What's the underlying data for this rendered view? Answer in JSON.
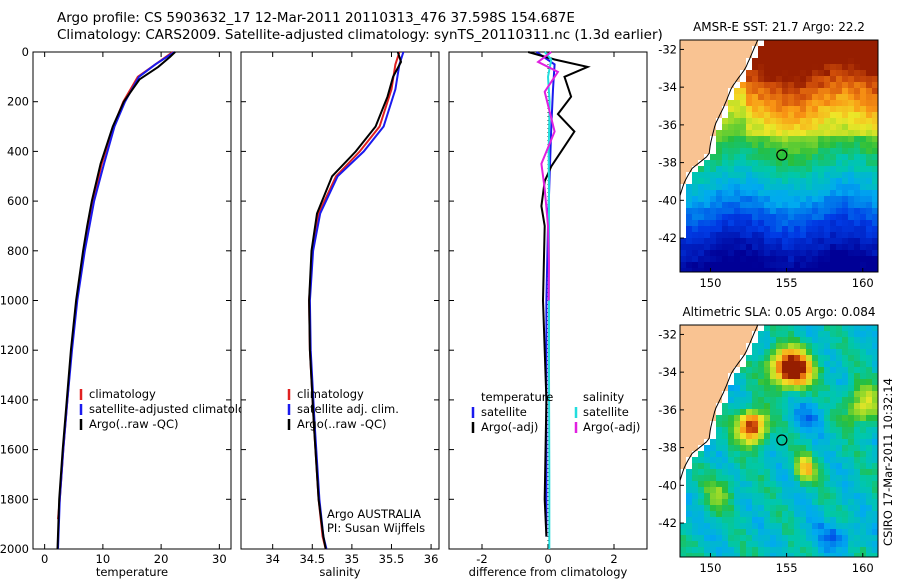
{
  "header": {
    "line1": "Argo profile: CS 5903632_17 12-Mar-2011 20110313_476 37.598S 154.687E",
    "line2": "Climatology: CARS2009. Satellite-adjusted climatology: synTS_20110311.nc (1.3d earlier)"
  },
  "side_stamp": "CSIRO 17-Mar-2011 10:32:14",
  "colors": {
    "clim": "#e02020",
    "sat": "#1a1aee",
    "argo": "#000000",
    "sal_sat": "#22dddd",
    "sal_argo": "#e020e0"
  },
  "chart_data": [
    {
      "type": "line",
      "xlabel": "temperature",
      "ylim": [
        2000,
        0
      ],
      "xlim": [
        -2,
        32
      ],
      "xticks": [
        "0",
        "10",
        "20",
        "30"
      ],
      "xtick_values": [
        0,
        10,
        20,
        30
      ],
      "yticks": [
        "0",
        "200",
        "400",
        "600",
        "800",
        "1000",
        "1200",
        "1400",
        "1600",
        "1800",
        "2000"
      ],
      "ytick_values": [
        0,
        200,
        400,
        600,
        800,
        1000,
        1200,
        1400,
        1600,
        1800,
        2000
      ],
      "legend": [
        "climatology",
        "satellite-adjusted climatology",
        "Argo(..raw -QC)"
      ],
      "series": [
        {
          "name": "climatology",
          "x": [
            22,
            19,
            16,
            13.5,
            11.8,
            9.8,
            8.3,
            7.6,
            6.8,
            5.5,
            4.6,
            3.9,
            3.2,
            2.6,
            2.3
          ],
          "y": [
            0,
            50,
            100,
            200,
            300,
            450,
            600,
            700,
            800,
            1000,
            1200,
            1400,
            1600,
            1800,
            1880
          ]
        },
        {
          "name": "satellite-adjusted climatology",
          "x": [
            22.3,
            19,
            16.2,
            13.8,
            12,
            10.2,
            8.5,
            7.7,
            6.9,
            5.6,
            4.7,
            3.9,
            3.2,
            2.6,
            2.3
          ],
          "y": [
            0,
            50,
            100,
            200,
            300,
            450,
            600,
            700,
            800,
            1000,
            1200,
            1400,
            1600,
            1800,
            2000
          ]
        },
        {
          "name": "Argo(..raw -QC)",
          "x": [
            22.4,
            21.5,
            19.5,
            16.3,
            13.6,
            11.7,
            9.6,
            8.1,
            7.3,
            6.6,
            5.4,
            4.5,
            3.8,
            3.1,
            2.5,
            2.2
          ],
          "y": [
            0,
            20,
            60,
            110,
            200,
            300,
            450,
            600,
            700,
            800,
            1000,
            1200,
            1400,
            1600,
            1800,
            2000
          ]
        }
      ]
    },
    {
      "type": "line",
      "xlabel": "salinity",
      "ylim": [
        2000,
        0
      ],
      "xlim": [
        33.6,
        36.1
      ],
      "xticks": [
        "34",
        "34.5",
        "35",
        "35.5",
        "36"
      ],
      "xtick_values": [
        34,
        34.5,
        35,
        35.5,
        36
      ],
      "legend": [
        "climatology",
        "satellite adj. clim.",
        "Argo(..raw -QC)"
      ],
      "annotation": [
        "Argo AUSTRALIA",
        "PI: Susan Wijffels"
      ],
      "series": [
        {
          "name": "climatology",
          "x": [
            35.6,
            35.55,
            35.5,
            35.35,
            35.1,
            34.8,
            34.58,
            34.5,
            34.46,
            34.47,
            34.52,
            34.58,
            34.63,
            34.67
          ],
          "y": [
            0,
            50,
            150,
            300,
            400,
            500,
            650,
            800,
            1000,
            1200,
            1500,
            1800,
            1950,
            2000
          ]
        },
        {
          "name": "satellite adj. clim.",
          "x": [
            35.65,
            35.6,
            35.55,
            35.4,
            35.15,
            34.82,
            34.6,
            34.51,
            34.47,
            34.48,
            34.53,
            34.59,
            34.64,
            34.68
          ],
          "y": [
            0,
            50,
            150,
            300,
            400,
            500,
            650,
            800,
            1000,
            1200,
            1500,
            1800,
            1950,
            2000
          ]
        },
        {
          "name": "Argo(..raw -QC)",
          "x": [
            35.58,
            35.62,
            35.52,
            35.45,
            35.3,
            35.05,
            34.75,
            34.56,
            34.49,
            34.46,
            34.47,
            34.52,
            34.58,
            34.64,
            34.67
          ],
          "y": [
            0,
            40,
            100,
            180,
            300,
            400,
            500,
            650,
            800,
            1000,
            1200,
            1500,
            1800,
            1950,
            2000
          ]
        }
      ]
    },
    {
      "type": "line",
      "xlabel": "difference from climatology",
      "ylim": [
        2000,
        0
      ],
      "xlim": [
        -3,
        3
      ],
      "xticks": [
        "-2",
        "0",
        "2"
      ],
      "xtick_values": [
        -2,
        0,
        2
      ],
      "legend_left_title": "temperature",
      "legend_right_title": "salinity",
      "legend_left": [
        "satellite",
        "Argo(-adj)"
      ],
      "legend_right": [
        "satellite",
        "Argo(-adj)"
      ],
      "series": [
        {
          "name": "temperature satellite",
          "x": [
            -0.35,
            0.2,
            0.15,
            0.1,
            0.05,
            0,
            -0.05,
            -0.05,
            -0.05,
            -0.05
          ],
          "y": [
            0,
            50,
            150,
            300,
            500,
            700,
            1000,
            1400,
            1800,
            1950
          ]
        },
        {
          "name": "temperature Argo(-adj)",
          "x": [
            -0.6,
            0.2,
            1.2,
            0.5,
            0.7,
            0.3,
            0.8,
            0.4,
            0.1,
            -0.1,
            -0.2,
            -0.1,
            -0.15,
            -0.05,
            -0.1,
            -0.05
          ],
          "y": [
            0,
            30,
            60,
            100,
            180,
            250,
            320,
            400,
            460,
            520,
            620,
            700,
            1000,
            1400,
            1800,
            1950
          ]
        },
        {
          "name": "salinity satellite",
          "x": [
            -0.1,
            0.1,
            0,
            0.05,
            0.02,
            0.03,
            0.03,
            0.03,
            0.04,
            0.04
          ],
          "y": [
            0,
            30,
            100,
            200,
            400,
            600,
            900,
            1300,
            1700,
            2000
          ]
        },
        {
          "name": "salinity Argo(-adj)",
          "x": [
            0.1,
            -0.3,
            0.3,
            -0.1,
            0.2,
            -0.2,
            -0.1,
            0,
            0.03,
            0.02
          ],
          "y": [
            0,
            40,
            80,
            160,
            320,
            450,
            550,
            700,
            850,
            1000
          ]
        }
      ]
    }
  ],
  "maps": [
    {
      "title": "AMSR-E SST: 21.7 Argo: 22.2",
      "xticks": [
        "150",
        "155",
        "160"
      ],
      "xtick_values": [
        150,
        155,
        160
      ],
      "yticks": [
        "-32",
        "-34",
        "-36",
        "-38",
        "-40",
        "-42"
      ],
      "ytick_values": [
        -32,
        -34,
        -36,
        -38,
        -40,
        -42
      ],
      "xlim": [
        148,
        161
      ],
      "ylim": [
        -43.8,
        -31.5
      ],
      "marker": {
        "lon": 154.687,
        "lat": -37.598
      }
    },
    {
      "title": "Altimetric SLA: 0.05 Argo: 0.084",
      "xticks": [
        "150",
        "155",
        "160"
      ],
      "xtick_values": [
        150,
        155,
        160
      ],
      "yticks": [
        "-32",
        "-34",
        "-36",
        "-38",
        "-40",
        "-42"
      ],
      "ytick_values": [
        -32,
        -34,
        -36,
        -38,
        -40,
        -42
      ],
      "xlim": [
        148,
        161
      ],
      "ylim": [
        -43.8,
        -31.5
      ],
      "marker": {
        "lon": 154.687,
        "lat": -37.598
      }
    }
  ]
}
